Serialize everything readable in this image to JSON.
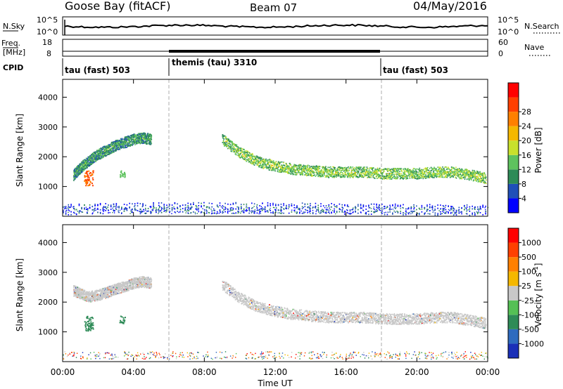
{
  "header": {
    "station": "Goose Bay (fitACF)",
    "beam": "Beam 07",
    "date": "04/May/2016"
  },
  "noise_panel": {
    "left_label": "N.Sky",
    "right_label": "N.Search",
    "left_ticks": [
      "10^5",
      "10^0"
    ],
    "right_ticks": [
      "10^5",
      "10^0"
    ]
  },
  "freq_panel": {
    "left_label_1": "Freq.",
    "left_label_2": "[MHz]",
    "right_label": "Nave",
    "left_ticks": [
      "18",
      "8"
    ],
    "right_ticks": [
      "60",
      "0"
    ]
  },
  "cpid": {
    "label": "CPID",
    "segments": [
      {
        "label": "tau (fast) 503",
        "start_hour": 0,
        "end_hour": 6
      },
      {
        "label": "themis (tau) 3310",
        "start_hour": 6,
        "end_hour": 18
      },
      {
        "label": "tau (fast) 503",
        "start_hour": 18,
        "end_hour": 24
      }
    ]
  },
  "chart_data": [
    {
      "type": "heatmap",
      "name": "power",
      "ylabel": "Slant Range [km]",
      "ylim": [
        0,
        4600
      ],
      "y_ticks": [
        "1000",
        "2000",
        "3000",
        "4000"
      ],
      "colorbar": {
        "label": "Power [dB]",
        "ticks": [
          "4",
          "8",
          "12",
          "16",
          "20",
          "24",
          "28"
        ],
        "colors": [
          "#0000ff",
          "#1f4fb8",
          "#2e8b57",
          "#5ec25e",
          "#c8e02c",
          "#f5b800",
          "#ff8000",
          "#ff4000",
          "#ff0000"
        ]
      },
      "bands": [
        {
          "x": [
            0.6,
            1.0,
            1.5,
            2.0,
            2.5,
            3.0,
            3.5,
            4.0,
            4.5,
            5.0
          ],
          "y": [
            1400,
            1650,
            1900,
            2100,
            2250,
            2400,
            2500,
            2600,
            2650,
            2600
          ],
          "level": 12
        },
        {
          "x": [
            9.0,
            10.0,
            11.0,
            12.0,
            13.0,
            14.0,
            15.0,
            16.0,
            17.0,
            18.0,
            19.0,
            20.0,
            21.0,
            22.0,
            23.0,
            23.9
          ],
          "y": [
            2600,
            2150,
            1850,
            1700,
            1600,
            1550,
            1500,
            1500,
            1500,
            1450,
            1450,
            1450,
            1500,
            1500,
            1400,
            1300
          ],
          "level": 16
        },
        {
          "x": [
            0.0,
            6.0,
            12.0,
            18.0,
            24.0
          ],
          "y": [
            250,
            300,
            300,
            250,
            220
          ],
          "level": 6
        }
      ]
    },
    {
      "type": "heatmap",
      "name": "velocity",
      "ylabel": "Slant Range [km]",
      "ylim": [
        0,
        4600
      ],
      "y_ticks": [
        "1000",
        "2000",
        "3000",
        "4000"
      ],
      "colorbar": {
        "label": "Velocity [m s^-1]",
        "ticks": [
          "1000",
          "500",
          "100",
          "25",
          "-25",
          "-100",
          "-500",
          "-1000"
        ],
        "colors": [
          "#1a2fb8",
          "#2e6bbf",
          "#2e8b57",
          "#55c055",
          "#c8c8c8",
          "#f5b800",
          "#ff8000",
          "#ff4000",
          "#ff0000"
        ]
      },
      "bands": [
        {
          "x": [
            0.6,
            1.0,
            1.5,
            2.0,
            2.5,
            3.0,
            3.5,
            4.0,
            4.5,
            5.0
          ],
          "y": [
            2400,
            2300,
            2200,
            2250,
            2350,
            2450,
            2550,
            2650,
            2700,
            2650
          ],
          "velocity": 0
        },
        {
          "x": [
            9.0,
            10.0,
            11.0,
            12.0,
            13.0,
            14.0,
            15.0,
            16.0,
            17.0,
            18.0,
            19.0,
            20.0,
            21.0,
            22.0,
            23.0,
            23.9
          ],
          "y": [
            2600,
            2150,
            1850,
            1700,
            1600,
            1550,
            1500,
            1500,
            1500,
            1450,
            1450,
            1450,
            1500,
            1500,
            1400,
            1300
          ],
          "velocity": 0
        }
      ]
    }
  ],
  "x_axis": {
    "ticks": [
      "00:00",
      "04:00",
      "08:00",
      "12:00",
      "16:00",
      "20:00",
      "00:00"
    ],
    "label": "Time UT"
  }
}
